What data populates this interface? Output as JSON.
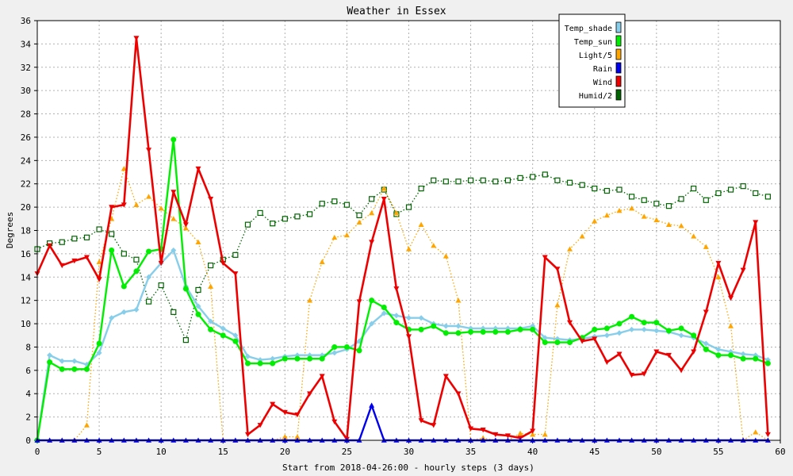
{
  "chart_data": {
    "type": "line",
    "title": "Weather in Essex",
    "xlabel": "Start from 2018-04-26:00 - hourly steps (3 days)",
    "ylabel": "Degrees",
    "xlim": [
      0,
      60
    ],
    "ylim": [
      0,
      36
    ],
    "x_ticks": [
      0,
      5,
      10,
      15,
      20,
      25,
      30,
      35,
      40,
      45,
      50,
      55,
      60
    ],
    "y_ticks": [
      0,
      2,
      4,
      6,
      8,
      10,
      12,
      14,
      16,
      18,
      20,
      22,
      24,
      26,
      28,
      30,
      32,
      34,
      36
    ],
    "grid": true,
    "legend_position": "top-right",
    "x": [
      0,
      1,
      2,
      3,
      4,
      5,
      6,
      7,
      8,
      9,
      10,
      11,
      12,
      13,
      14,
      15,
      16,
      17,
      18,
      19,
      20,
      21,
      22,
      23,
      24,
      25,
      26,
      27,
      28,
      29,
      30,
      31,
      32,
      33,
      34,
      35,
      36,
      37,
      38,
      39,
      40,
      41,
      42,
      43,
      44,
      45,
      46,
      47,
      48,
      49,
      50,
      51,
      52,
      53,
      54,
      55,
      56,
      57,
      58,
      59
    ],
    "series": [
      {
        "name": "Temp_shade",
        "color": "#87ceeb",
        "marker": "diamond",
        "style": "solid",
        "values": [
          0,
          7.3,
          6.8,
          6.8,
          6.5,
          7.5,
          10.5,
          11,
          11.2,
          14.0,
          15.2,
          16.3,
          13.2,
          11.5,
          10.2,
          9.6,
          9.0,
          7.2,
          6.9,
          7.0,
          7.2,
          7.3,
          7.3,
          7.3,
          7.5,
          7.8,
          8.5,
          10.0,
          10.9,
          10.7,
          10.5,
          10.5,
          10.0,
          9.8,
          9.8,
          9.6,
          9.6,
          9.6,
          9.6,
          9.6,
          9.8,
          8.8,
          8.7,
          8.6,
          8.7,
          8.9,
          9.0,
          9.2,
          9.5,
          9.5,
          9.4,
          9.3,
          9.0,
          8.8,
          8.3,
          7.8,
          7.6,
          7.4,
          7.3,
          6.9
        ]
      },
      {
        "name": "Temp_sun",
        "color": "#00ee00",
        "marker": "circle",
        "style": "solid",
        "values": [
          0,
          6.7,
          6.1,
          6.1,
          6.1,
          8.3,
          16.3,
          13.2,
          14.5,
          16.2,
          16.4,
          25.8,
          13.0,
          10.8,
          9.5,
          9.0,
          8.5,
          6.6,
          6.6,
          6.6,
          7.0,
          7.0,
          7.0,
          7.0,
          8.0,
          8.0,
          7.7,
          12.0,
          11.4,
          10.1,
          9.5,
          9.5,
          9.8,
          9.2,
          9.2,
          9.3,
          9.3,
          9.3,
          9.3,
          9.5,
          9.5,
          8.4,
          8.4,
          8.4,
          8.8,
          9.5,
          9.6,
          10.0,
          10.6,
          10.1,
          10.1,
          9.4,
          9.6,
          9.0,
          7.8,
          7.3,
          7.3,
          7.0,
          7.0,
          6.6
        ]
      },
      {
        "name": "Light/5",
        "color": "#ffa500",
        "marker": "triangle-up",
        "style": "dotted",
        "values": [
          0,
          0,
          0,
          0,
          1.3,
          15.3,
          19.0,
          23.3,
          20.2,
          20.9,
          19.9,
          19.0,
          18.2,
          17.0,
          13.2,
          0,
          0,
          0,
          0,
          0,
          0.3,
          0.3,
          12.0,
          15.3,
          17.4,
          17.6,
          18.7,
          19.5,
          21.6,
          19.5,
          16.4,
          18.5,
          16.7,
          15.8,
          12.0,
          0,
          0.2,
          0,
          0,
          0.6,
          0.5,
          0.5,
          11.6,
          16.4,
          17.5,
          18.8,
          19.3,
          19.7,
          19.9,
          19.2,
          18.9,
          18.5,
          18.4,
          17.5,
          16.6,
          14.0,
          9.8,
          0,
          0.7,
          0
        ]
      },
      {
        "name": "Rain",
        "color": "#0000ee",
        "marker": "triangle-up",
        "style": "solid",
        "values": [
          0,
          0,
          0,
          0,
          0,
          0,
          0,
          0,
          0,
          0,
          0,
          0,
          0,
          0,
          0,
          0,
          0,
          0,
          0,
          0,
          0,
          0,
          0,
          0,
          0,
          0,
          0,
          3.0,
          0,
          0,
          0,
          0,
          0,
          0,
          0,
          0,
          0,
          0,
          0,
          0,
          0,
          0,
          0,
          0,
          0,
          0,
          0,
          0,
          0,
          0,
          0,
          0,
          0,
          0,
          0,
          0,
          0,
          0,
          0,
          0
        ]
      },
      {
        "name": "Wind",
        "color": "#ee0000",
        "marker": "triangle-down",
        "style": "solid",
        "values": [
          14.3,
          16.7,
          15.0,
          15.4,
          15.7,
          13.8,
          20.0,
          20.2,
          34.5,
          24.9,
          15.2,
          21.3,
          18.5,
          23.3,
          20.7,
          15.2,
          14.3,
          0.5,
          1.3,
          3.1,
          2.4,
          2.2,
          4.0,
          5.5,
          1.6,
          0.1,
          11.9,
          17.0,
          20.7,
          13.0,
          8.9,
          1.7,
          1.3,
          5.5,
          4.0,
          1.0,
          0.9,
          0.5,
          0.4,
          0.2,
          0.8,
          15.7,
          14.7,
          10.1,
          8.5,
          8.7,
          6.7,
          7.4,
          5.6,
          5.7,
          7.6,
          7.3,
          6.0,
          7.6,
          11.0,
          15.2,
          12.2,
          14.6,
          18.7,
          0.5
        ]
      },
      {
        "name": "Humid/2",
        "color": "#006400",
        "marker": "square",
        "style": "dotted",
        "values": [
          16.4,
          16.9,
          17.0,
          17.3,
          17.4,
          18.1,
          17.7,
          16.0,
          15.5,
          11.9,
          13.3,
          11.0,
          8.6,
          12.9,
          15.0,
          15.5,
          15.9,
          18.5,
          19.5,
          18.6,
          19.0,
          19.2,
          19.4,
          20.3,
          20.5,
          20.2,
          19.3,
          20.7,
          21.5,
          19.4,
          20.0,
          21.6,
          22.3,
          22.2,
          22.2,
          22.3,
          22.3,
          22.2,
          22.3,
          22.5,
          22.6,
          22.8,
          22.3,
          22.1,
          21.9,
          21.6,
          21.4,
          21.5,
          20.9,
          20.6,
          20.3,
          20.1,
          20.7,
          21.6,
          20.6,
          21.2,
          21.5,
          21.8,
          21.2,
          20.9
        ]
      }
    ]
  }
}
